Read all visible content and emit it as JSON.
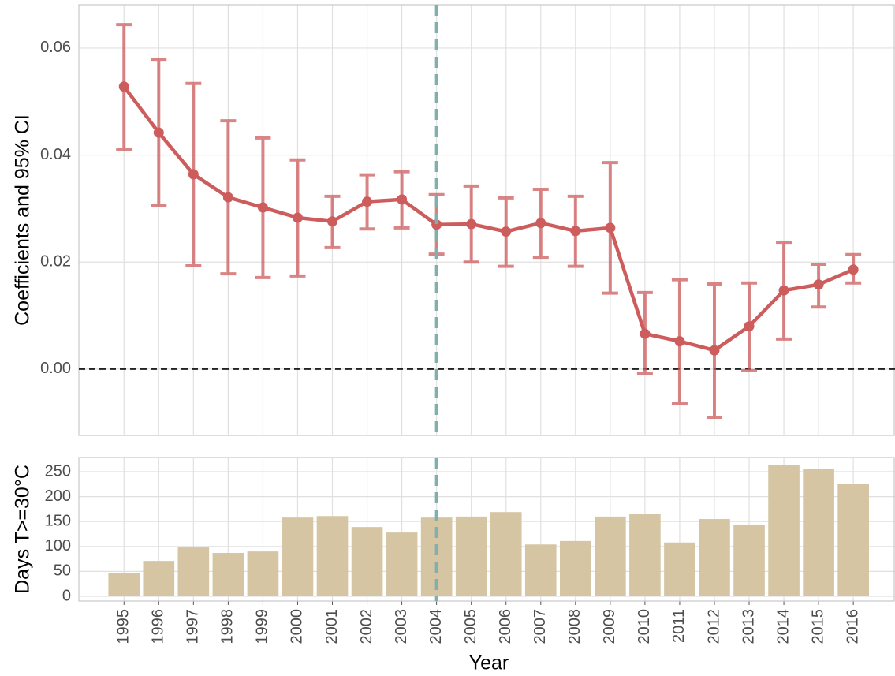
{
  "chart_data": [
    {
      "type": "line",
      "ylabel": "Coefficients and 95% CI",
      "x": [
        1995,
        1996,
        1997,
        1998,
        1999,
        2000,
        2001,
        2002,
        2003,
        2004,
        2005,
        2006,
        2007,
        2008,
        2009,
        2010,
        2011,
        2012,
        2013,
        2014,
        2015,
        2016
      ],
      "values": [
        0.0528,
        0.0442,
        0.0364,
        0.0321,
        0.0302,
        0.0283,
        0.0276,
        0.0313,
        0.0317,
        0.027,
        0.0271,
        0.0257,
        0.0273,
        0.0258,
        0.0264,
        0.0066,
        0.0052,
        0.0035,
        0.008,
        0.0147,
        0.0158,
        0.0186
      ],
      "lower": [
        0.041,
        0.0305,
        0.0193,
        0.0178,
        0.0171,
        0.0174,
        0.0227,
        0.0262,
        0.0264,
        0.0215,
        0.02,
        0.0192,
        0.0209,
        0.0192,
        0.0142,
        -0.0009,
        -0.0065,
        -0.009,
        -0.0003,
        0.0056,
        0.0116,
        0.0161
      ],
      "upper": [
        0.0644,
        0.0579,
        0.0534,
        0.0464,
        0.0432,
        0.0391,
        0.0323,
        0.0363,
        0.0369,
        0.0326,
        0.0342,
        0.032,
        0.0336,
        0.0323,
        0.0386,
        0.0143,
        0.0167,
        0.0159,
        0.0161,
        0.0237,
        0.0196,
        0.0214
      ],
      "color": "#cd5c5c",
      "xlim": [
        1993.7,
        2017.2
      ],
      "ylim": [
        -0.0124,
        0.0681
      ],
      "yticks": [
        {
          "value": 0,
          "label": "0.00"
        },
        0.02,
        0.04,
        0.06
      ],
      "hline": 0,
      "vline": 2004,
      "grid": true
    },
    {
      "type": "bar",
      "ylabel": "Days T>=30°C",
      "xlabel": "Year",
      "x": [
        1995,
        1996,
        1997,
        1998,
        1999,
        2000,
        2001,
        2002,
        2003,
        2004,
        2005,
        2006,
        2007,
        2008,
        2009,
        2010,
        2011,
        2012,
        2013,
        2014,
        2015,
        2016
      ],
      "values": [
        47,
        71,
        98,
        87,
        90,
        158,
        161,
        139,
        128,
        158,
        160,
        169,
        104,
        111,
        160,
        165,
        108,
        155,
        144,
        263,
        255,
        226
      ],
      "color": "#d5c5a3",
      "xlim": [
        1993.7,
        2017.2
      ],
      "ylim": [
        -9.5,
        278.5
      ],
      "yticks": [
        0,
        50,
        100,
        150,
        200,
        250
      ],
      "vline": 2004,
      "grid": true
    }
  ]
}
